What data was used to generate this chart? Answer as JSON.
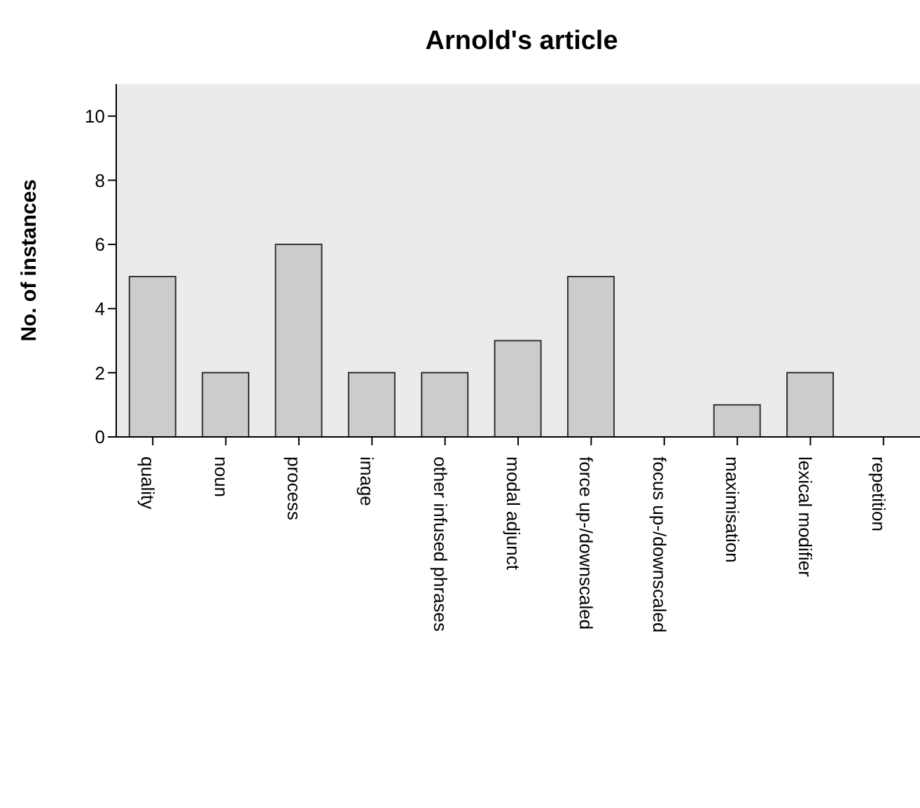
{
  "chart_data": {
    "type": "bar",
    "title": "Arnold's article",
    "ylabel": "No. of instances",
    "categories": [
      "quality",
      "noun",
      "process",
      "image",
      "other infused phrases",
      "modal adjunct",
      "force up-/downscaled",
      "focus up-/downscaled",
      "maximisation",
      "lexical modifier",
      "repetition"
    ],
    "values": [
      5,
      2,
      6,
      2,
      2,
      3,
      5,
      0,
      1,
      2,
      0
    ],
    "color": "#cccccc",
    "ylim": [
      0,
      11
    ],
    "yticks": [
      0,
      2,
      4,
      6,
      8,
      10
    ],
    "grid": false
  }
}
